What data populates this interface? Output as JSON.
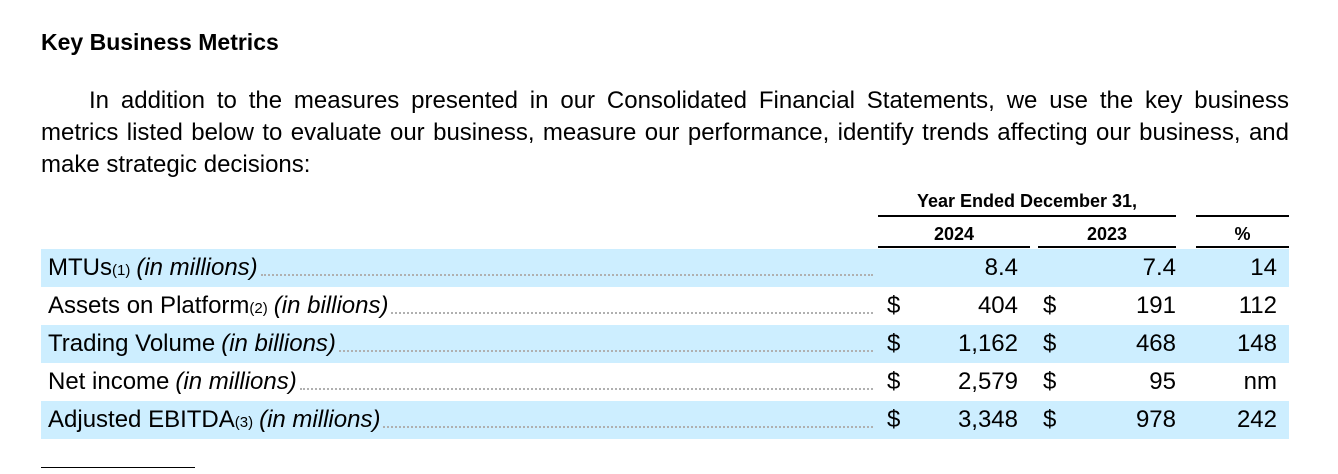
{
  "heading": "Key Business Metrics",
  "intro": "In addition to the measures presented in our Consolidated Financial Statements, we use the key business metrics listed below to evaluate our business, measure our performance, identify trends affecting our business, and make strategic decisions:",
  "table": {
    "group_header": "Year Ended December 31,",
    "columns": [
      "2024",
      "2023",
      "%"
    ],
    "rows": [
      {
        "label": "MTUs",
        "sup": "(1)",
        "unit": "(in millions)",
        "d1": "",
        "v1": "8.4",
        "d2": "",
        "v2": "7.4",
        "pct": "14"
      },
      {
        "label": "Assets on Platform",
        "sup": "(2)",
        "unit": "(in billions)",
        "d1": "$",
        "v1": "404",
        "d2": "$",
        "v2": "191",
        "pct": "112"
      },
      {
        "label": "Trading Volume",
        "sup": "",
        "unit": "(in billions)",
        "d1": "$",
        "v1": "1,162",
        "d2": "$",
        "v2": "468",
        "pct": "148"
      },
      {
        "label": "Net income",
        "sup": "",
        "unit": "(in millions)",
        "d1": "$",
        "v1": "2,579",
        "d2": "$",
        "v2": "95",
        "pct": "nm"
      },
      {
        "label": "Adjusted EBITDA",
        "sup": "(3)",
        "unit": "(in millions)",
        "d1": "$",
        "v1": "3,348",
        "d2": "$",
        "v2": "978",
        "pct": "242"
      }
    ]
  },
  "colors": {
    "row_shade": "#cdeeff"
  }
}
